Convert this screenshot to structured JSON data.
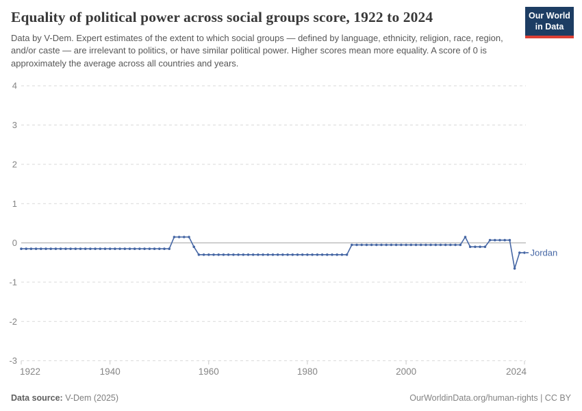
{
  "header": {
    "title": "Equality of political power across social groups score, 1922 to 2024",
    "subtitle": "Data by V-Dem. Expert estimates of the extent to which social groups — defined by language, ethnicity, religion, race, region, and/or caste — are irrelevant to politics, or have similar political power. Higher scores mean more equality. A score of 0 is approximately the average across all countries and years.",
    "logo": {
      "line1": "Our World",
      "line2": "in Data"
    }
  },
  "footer": {
    "source_label": "Data source:",
    "source_value": " V-Dem (2025)",
    "credit": "OurWorldinData.org/human-rights | CC BY"
  },
  "colors": {
    "line": "#4566a4",
    "grid": "#d9d9d9",
    "zero_line": "#a3a3a3",
    "axis_text": "#858585",
    "tick_mark": "#c8c8c8",
    "logo_bg": "#1d3d63",
    "logo_red": "#dc3f34"
  },
  "chart_data": {
    "type": "line",
    "title": "Equality of political power across social groups score, 1922 to 2024",
    "xlabel": "",
    "ylabel": "",
    "xlim": [
      1922,
      2024
    ],
    "ylim": [
      -3,
      4
    ],
    "x_ticks": [
      1922,
      1940,
      1960,
      1980,
      2000,
      2024
    ],
    "y_ticks": [
      4,
      3,
      2,
      1,
      0,
      -1,
      -2,
      -3
    ],
    "grid": "horizontal dashed gridlines; solid line at 0",
    "legend": "entity label at right end of line",
    "entity_label": "Jordan",
    "series": [
      {
        "name": "Jordan",
        "note": "segments are [startYear, endYear, value]; one data point per year",
        "segments": [
          [
            1922,
            1952,
            -0.15
          ],
          [
            1953,
            1956,
            0.15
          ],
          [
            1957,
            1957,
            -0.1
          ],
          [
            1958,
            1988,
            -0.3
          ],
          [
            1989,
            2011,
            -0.05
          ],
          [
            2012,
            2012,
            0.15
          ],
          [
            2013,
            2016,
            -0.1
          ],
          [
            2017,
            2021,
            0.07
          ],
          [
            2022,
            2022,
            -0.65
          ],
          [
            2023,
            2024,
            -0.25
          ]
        ]
      }
    ]
  }
}
